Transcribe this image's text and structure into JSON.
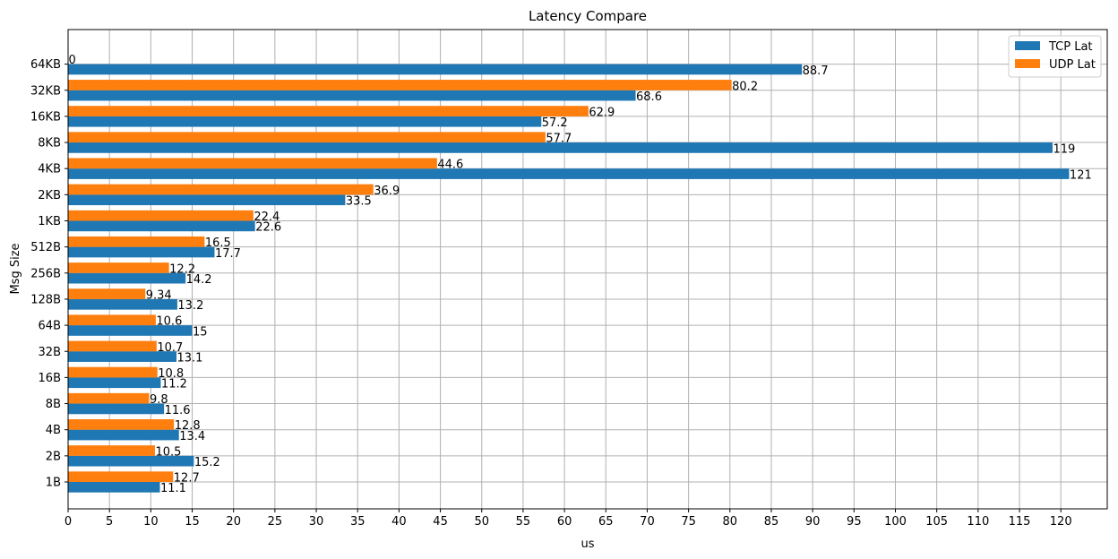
{
  "chart_data": {
    "type": "bar",
    "orientation": "horizontal",
    "title": "Latency Compare",
    "xlabel": "us",
    "ylabel": "Msg Size",
    "categories": [
      "1B",
      "2B",
      "4B",
      "8B",
      "16B",
      "32B",
      "64B",
      "128B",
      "256B",
      "512B",
      "1KB",
      "2KB",
      "4KB",
      "8KB",
      "16KB",
      "32KB",
      "64KB"
    ],
    "series": [
      {
        "name": "TCP Lat",
        "color": "#1f77b4",
        "values": [
          11.1,
          15.2,
          13.4,
          11.6,
          11.2,
          13.1,
          15,
          13.2,
          14.2,
          17.7,
          22.6,
          33.5,
          121,
          119,
          57.2,
          68.6,
          88.7
        ],
        "labels": [
          "11.1",
          "15.2",
          "13.4",
          "11.6",
          "11.2",
          "13.1",
          "15",
          "13.2",
          "14.2",
          "17.7",
          "22.6",
          "33.5",
          "121",
          "119",
          "57.2",
          "68.6",
          "88.7"
        ]
      },
      {
        "name": "UDP Lat",
        "color": "#ff7f0e",
        "values": [
          12.7,
          10.5,
          12.8,
          9.8,
          10.8,
          10.7,
          10.6,
          9.34,
          12.2,
          16.5,
          22.4,
          36.9,
          44.6,
          57.7,
          62.9,
          80.2,
          0
        ],
        "labels": [
          "12.7",
          "10.5",
          "12.8",
          "9.8",
          "10.8",
          "10.7",
          "10.6",
          "9.34",
          "12.2",
          "16.5",
          "22.4",
          "36.9",
          "44.6",
          "57.7",
          "62.9",
          "80.2",
          "0"
        ]
      }
    ],
    "xlim": [
      0,
      125.6
    ],
    "xticks": [
      0,
      5,
      10,
      15,
      20,
      25,
      30,
      35,
      40,
      45,
      50,
      55,
      60,
      65,
      70,
      75,
      80,
      85,
      90,
      95,
      100,
      105,
      110,
      115,
      120
    ],
    "grid": true,
    "legend_position": "top-right"
  }
}
